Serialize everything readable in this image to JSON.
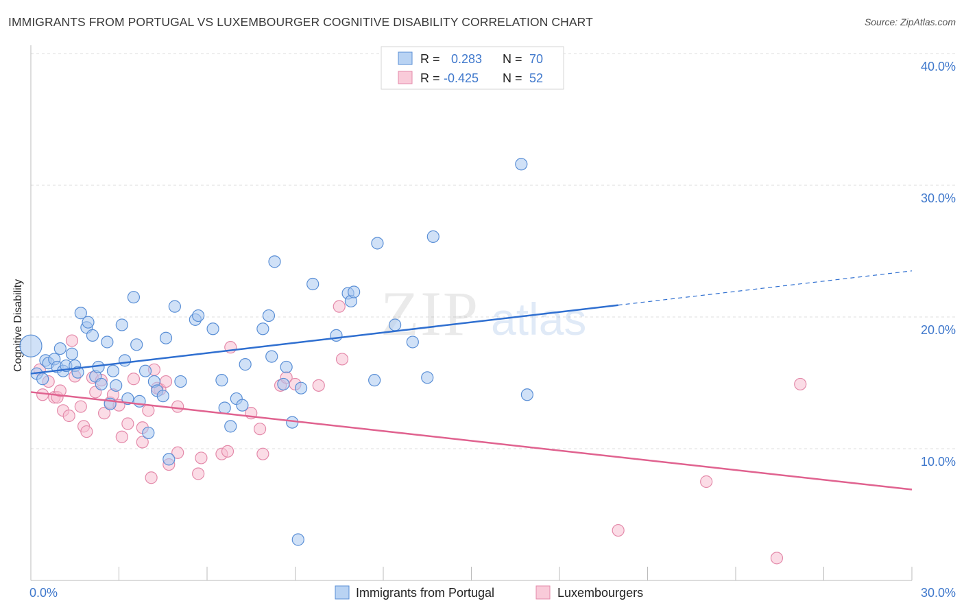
{
  "title": "IMMIGRANTS FROM PORTUGAL VS LUXEMBOURGER COGNITIVE DISABILITY CORRELATION CHART",
  "source": "Source: ZipAtlas.com",
  "watermark": {
    "zip": "ZIP",
    "atlas": "atlas"
  },
  "legend_box": {
    "rows": [
      {
        "r_label": "R =",
        "r_value": "0.283",
        "n_label": "N =",
        "n_value": "70"
      },
      {
        "r_label": "R =",
        "r_value": "-0.425",
        "n_label": "N =",
        "n_value": "52"
      }
    ]
  },
  "bottom_legend": [
    "Immigrants from Portugal",
    "Luxembourgers"
  ],
  "colors": {
    "blue_fill": "#a9c9f0",
    "blue_stroke": "#5a8fd6",
    "blue_line": "#2f6fd0",
    "pink_fill": "#f7c0d2",
    "pink_stroke": "#e48aaa",
    "pink_line": "#e0628f",
    "tick_text": "#3f78cc",
    "grid": "#dddddd"
  },
  "chart_data": {
    "type": "scatter",
    "title": "IMMIGRANTS FROM PORTUGAL VS LUXEMBOURGER COGNITIVE DISABILITY CORRELATION CHART",
    "xlabel": "",
    "ylabel": "Cognitive Disability",
    "xlim": [
      0,
      30
    ],
    "ylim": [
      0,
      41
    ],
    "x_tick_labels": [
      "0.0%",
      "30.0%"
    ],
    "y_ticks": [
      10,
      20,
      30,
      40
    ],
    "y_tick_labels": [
      "10.0%",
      "20.0%",
      "30.0%",
      "40.0%"
    ],
    "grid": true,
    "legend_position": "top-center",
    "series": [
      {
        "name": "Immigrants from Portugal",
        "R": 0.283,
        "N": 70,
        "trend": {
          "x": [
            0,
            20
          ],
          "y": [
            15.7,
            20.9
          ],
          "dashed_to": [
            30,
            23.5
          ]
        },
        "points": [
          [
            0.0,
            17.8
          ],
          [
            0.2,
            15.7
          ],
          [
            0.4,
            15.3
          ],
          [
            0.5,
            16.7
          ],
          [
            0.6,
            16.5
          ],
          [
            0.8,
            16.8
          ],
          [
            0.9,
            16.2
          ],
          [
            1.0,
            17.6
          ],
          [
            1.1,
            15.9
          ],
          [
            1.2,
            16.3
          ],
          [
            1.4,
            17.2
          ],
          [
            1.5,
            16.3
          ],
          [
            1.6,
            15.8
          ],
          [
            1.7,
            20.3
          ],
          [
            1.9,
            19.2
          ],
          [
            1.95,
            19.6
          ],
          [
            2.1,
            18.6
          ],
          [
            2.2,
            15.5
          ],
          [
            2.3,
            16.2
          ],
          [
            2.4,
            14.9
          ],
          [
            2.6,
            18.1
          ],
          [
            2.7,
            13.4
          ],
          [
            2.8,
            15.9
          ],
          [
            2.9,
            14.8
          ],
          [
            3.1,
            19.4
          ],
          [
            3.2,
            16.7
          ],
          [
            3.3,
            13.8
          ],
          [
            3.5,
            21.5
          ],
          [
            3.6,
            17.9
          ],
          [
            3.7,
            13.6
          ],
          [
            3.9,
            15.9
          ],
          [
            4.0,
            11.2
          ],
          [
            4.2,
            15.1
          ],
          [
            4.3,
            14.4
          ],
          [
            4.5,
            14.0
          ],
          [
            4.6,
            18.4
          ],
          [
            4.7,
            9.2
          ],
          [
            4.9,
            20.8
          ],
          [
            5.1,
            15.1
          ],
          [
            5.6,
            19.8
          ],
          [
            5.7,
            20.1
          ],
          [
            6.2,
            19.1
          ],
          [
            6.5,
            15.2
          ],
          [
            6.6,
            13.1
          ],
          [
            6.8,
            11.7
          ],
          [
            7.0,
            13.8
          ],
          [
            7.2,
            13.3
          ],
          [
            7.3,
            16.4
          ],
          [
            7.9,
            19.1
          ],
          [
            8.1,
            20.1
          ],
          [
            8.2,
            17.0
          ],
          [
            8.3,
            24.2
          ],
          [
            8.6,
            14.9
          ],
          [
            8.7,
            16.2
          ],
          [
            8.9,
            12.0
          ],
          [
            9.1,
            3.1
          ],
          [
            9.2,
            14.6
          ],
          [
            9.6,
            22.5
          ],
          [
            10.4,
            18.6
          ],
          [
            10.8,
            21.8
          ],
          [
            10.9,
            21.2
          ],
          [
            11.0,
            21.9
          ],
          [
            11.7,
            15.2
          ],
          [
            11.8,
            25.6
          ],
          [
            12.4,
            19.4
          ],
          [
            13.0,
            18.1
          ],
          [
            13.5,
            15.4
          ],
          [
            13.7,
            26.1
          ],
          [
            16.7,
            31.6
          ],
          [
            16.9,
            14.1
          ]
        ]
      },
      {
        "name": "Luxembourgers",
        "R": -0.425,
        "N": 52,
        "trend": {
          "x": [
            0,
            30
          ],
          "y": [
            14.3,
            6.9
          ]
        },
        "points": [
          [
            0.3,
            16.0
          ],
          [
            0.4,
            14.1
          ],
          [
            0.6,
            15.1
          ],
          [
            0.8,
            13.9
          ],
          [
            0.9,
            13.9
          ],
          [
            1.0,
            14.4
          ],
          [
            1.1,
            12.9
          ],
          [
            1.3,
            12.5
          ],
          [
            1.4,
            18.2
          ],
          [
            1.5,
            15.5
          ],
          [
            1.7,
            13.2
          ],
          [
            1.8,
            11.7
          ],
          [
            1.9,
            11.3
          ],
          [
            2.1,
            15.4
          ],
          [
            2.2,
            14.3
          ],
          [
            2.4,
            15.2
          ],
          [
            2.5,
            12.7
          ],
          [
            2.7,
            13.5
          ],
          [
            2.8,
            14.1
          ],
          [
            3.0,
            13.3
          ],
          [
            3.1,
            10.9
          ],
          [
            3.3,
            11.9
          ],
          [
            3.5,
            15.3
          ],
          [
            3.8,
            11.6
          ],
          [
            3.8,
            10.5
          ],
          [
            4.0,
            12.9
          ],
          [
            4.1,
            7.8
          ],
          [
            4.2,
            16.0
          ],
          [
            4.4,
            14.5
          ],
          [
            4.6,
            15.1
          ],
          [
            4.7,
            8.8
          ],
          [
            5.0,
            13.2
          ],
          [
            5.0,
            9.7
          ],
          [
            5.7,
            8.1
          ],
          [
            5.8,
            9.3
          ],
          [
            6.5,
            9.6
          ],
          [
            6.7,
            9.8
          ],
          [
            6.8,
            17.7
          ],
          [
            7.5,
            12.7
          ],
          [
            7.8,
            11.5
          ],
          [
            7.9,
            9.6
          ],
          [
            8.5,
            14.8
          ],
          [
            8.7,
            15.4
          ],
          [
            9.8,
            14.8
          ],
          [
            10.5,
            20.8
          ],
          [
            10.6,
            16.8
          ],
          [
            20.0,
            3.8
          ],
          [
            23.0,
            7.5
          ],
          [
            25.4,
            1.7
          ],
          [
            26.2,
            14.9
          ],
          [
            9.0,
            14.9
          ],
          [
            4.3,
            14.6
          ]
        ]
      }
    ]
  }
}
